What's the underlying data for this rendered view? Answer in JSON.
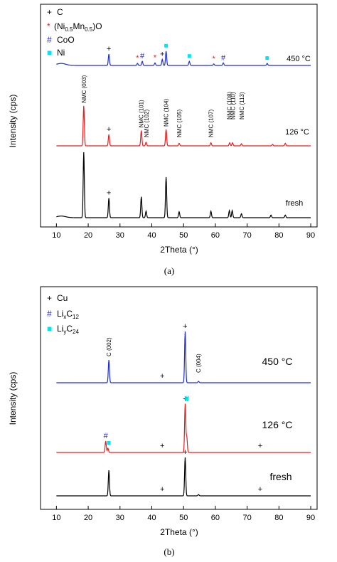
{
  "chart_data": [
    {
      "panel_label": "(a)",
      "type": "line",
      "xlabel": "2Theta (°)",
      "ylabel": "Intensity (cps)",
      "xlim": [
        5,
        92
      ],
      "xticks": [
        "10",
        "20",
        "30",
        "40",
        "50",
        "60",
        "70",
        "80",
        "90"
      ],
      "legend": [
        {
          "symbol": "+",
          "label": "C",
          "color": "#000000"
        },
        {
          "symbol": "*",
          "label": "(Ni0.5Mn0.5)O",
          "color": "#d62728"
        },
        {
          "symbol": "#",
          "label": "CoO",
          "color": "#1f1fd0"
        },
        {
          "symbol": "■",
          "label": "Ni",
          "color": "#00e5ee"
        }
      ],
      "series": [
        {
          "name": "450 °C",
          "color": "#1f2fd0",
          "peaks": [
            [
              26.5,
              22
            ],
            [
              35.5,
              4
            ],
            [
              37,
              8
            ],
            [
              41,
              5
            ],
            [
              43.3,
              12
            ],
            [
              44.5,
              28
            ],
            [
              51.8,
              8
            ],
            [
              59.5,
              3
            ],
            [
              62.5,
              5
            ],
            [
              76.3,
              4
            ]
          ]
        },
        {
          "name": "126 °C",
          "color": "#e02020",
          "peaks": [
            [
              18.6,
              78
            ],
            [
              26.5,
              22
            ],
            [
              36.7,
              30
            ],
            [
              38.2,
              7
            ],
            [
              44.5,
              32
            ],
            [
              48.6,
              5
            ],
            [
              58.6,
              6
            ],
            [
              64.5,
              6
            ],
            [
              65.4,
              6
            ],
            [
              68.2,
              4
            ],
            [
              78,
              3
            ],
            [
              82,
              5
            ]
          ]
        },
        {
          "name": "fresh",
          "color": "#000000",
          "peaks": [
            [
              18.6,
              100
            ],
            [
              26.5,
              30
            ],
            [
              36.7,
              32
            ],
            [
              38.2,
              10
            ],
            [
              44.5,
              62
            ],
            [
              48.6,
              9
            ],
            [
              58.6,
              10
            ],
            [
              64.4,
              11
            ],
            [
              65.3,
              11
            ],
            [
              68.2,
              6
            ],
            [
              77.5,
              4
            ],
            [
              82,
              4
            ]
          ]
        }
      ],
      "annotations": [
        {
          "text": "NMC (003)",
          "x": 18.6
        },
        {
          "text": "NMC (101)",
          "x": 36.7
        },
        {
          "text": "NMC (102)",
          "x": 38.3
        },
        {
          "text": "NMC (104)",
          "x": 44.5
        },
        {
          "text": "NMC (105)",
          "x": 48.6
        },
        {
          "text": "NMC (107)",
          "x": 58.6
        },
        {
          "text": "NMC (108)",
          "x": 64.4
        },
        {
          "text": "NMC (110)",
          "x": 65.5
        },
        {
          "text": "NMC (113)",
          "x": 68.3
        }
      ],
      "markers": [
        {
          "symbol": "+",
          "color": "#000000",
          "series": "450 °C",
          "x": 26.5
        },
        {
          "symbol": "+",
          "color": "#000000",
          "series": "450 °C",
          "x": 43.3
        },
        {
          "symbol": "*",
          "color": "#d62728",
          "series": "450 °C",
          "x": 35.5
        },
        {
          "symbol": "*",
          "color": "#d62728",
          "series": "450 °C",
          "x": 41.0
        },
        {
          "symbol": "*",
          "color": "#d62728",
          "series": "450 °C",
          "x": 59.5
        },
        {
          "symbol": "#",
          "color": "#1f1fd0",
          "series": "450 °C",
          "x": 37.0
        },
        {
          "symbol": "#",
          "color": "#1f1fd0",
          "series": "450 °C",
          "x": 62.5
        },
        {
          "symbol": "■",
          "color": "#00e5ee",
          "series": "450 °C",
          "x": 44.5
        },
        {
          "symbol": "■",
          "color": "#00e5ee",
          "series": "450 °C",
          "x": 51.8
        },
        {
          "symbol": "■",
          "color": "#00e5ee",
          "series": "450 °C",
          "x": 76.3
        },
        {
          "symbol": "+",
          "color": "#000000",
          "series": "126 °C",
          "x": 26.5
        },
        {
          "symbol": "+",
          "color": "#000000",
          "series": "fresh",
          "x": 26.5
        }
      ]
    },
    {
      "panel_label": "(b)",
      "type": "line",
      "xlabel": "2Theta (°)",
      "ylabel": "Intensity (cps)",
      "xlim": [
        5,
        92
      ],
      "xticks": [
        "10",
        "20",
        "30",
        "40",
        "50",
        "60",
        "70",
        "80",
        "90"
      ],
      "legend": [
        {
          "symbol": "+",
          "label": "Cu",
          "color": "#000000"
        },
        {
          "symbol": "#",
          "label": "LixC12",
          "color": "#1f1fd0"
        },
        {
          "symbol": "■",
          "label": "LiyC24",
          "color": "#00e5ee"
        }
      ],
      "series": [
        {
          "name": "450 °C",
          "color": "#1f2fd0",
          "peaks": [
            [
              26.5,
              32
            ],
            [
              50.5,
              72
            ],
            [
              54.7,
              2
            ]
          ]
        },
        {
          "name": "126 °C",
          "color": "#e02020",
          "peaks": [
            [
              25.5,
              16
            ],
            [
              26.2,
              6
            ],
            [
              50.5,
              68
            ],
            [
              51.0,
              22
            ]
          ]
        },
        {
          "name": "fresh",
          "color": "#000000",
          "peaks": [
            [
              26.5,
              40
            ],
            [
              50.5,
              60
            ],
            [
              54.7,
              2
            ]
          ]
        }
      ],
      "annotations": [
        {
          "text": "C (002)",
          "x": 26.5
        },
        {
          "text": "C (004)",
          "x": 54.7
        }
      ],
      "markers": [
        {
          "symbol": "+",
          "color": "#000000",
          "series": "450 °C",
          "x": 43.3
        },
        {
          "symbol": "+",
          "color": "#000000",
          "series": "450 °C",
          "x": 50.5
        },
        {
          "symbol": "+",
          "color": "#000000",
          "series": "126 °C",
          "x": 43.3
        },
        {
          "symbol": "+",
          "color": "#000000",
          "series": "126 °C",
          "x": 50.5
        },
        {
          "symbol": "+",
          "color": "#000000",
          "series": "126 °C",
          "x": 74.1
        },
        {
          "symbol": "#",
          "color": "#1f1fd0",
          "series": "126 °C",
          "x": 25.5
        },
        {
          "symbol": "#",
          "color": "#1f1fd0",
          "series": "126 °C",
          "x": 51.0
        },
        {
          "symbol": "■",
          "color": "#00e5ee",
          "series": "126 °C",
          "x": 26.5
        },
        {
          "symbol": "■",
          "color": "#00e5ee",
          "series": "126 °C",
          "x": 51.0
        },
        {
          "symbol": "+",
          "color": "#000000",
          "series": "fresh",
          "x": 43.3
        },
        {
          "symbol": "+",
          "color": "#000000",
          "series": "fresh",
          "x": 50.5
        },
        {
          "symbol": "+",
          "color": "#000000",
          "series": "fresh",
          "x": 74.1
        }
      ]
    }
  ]
}
